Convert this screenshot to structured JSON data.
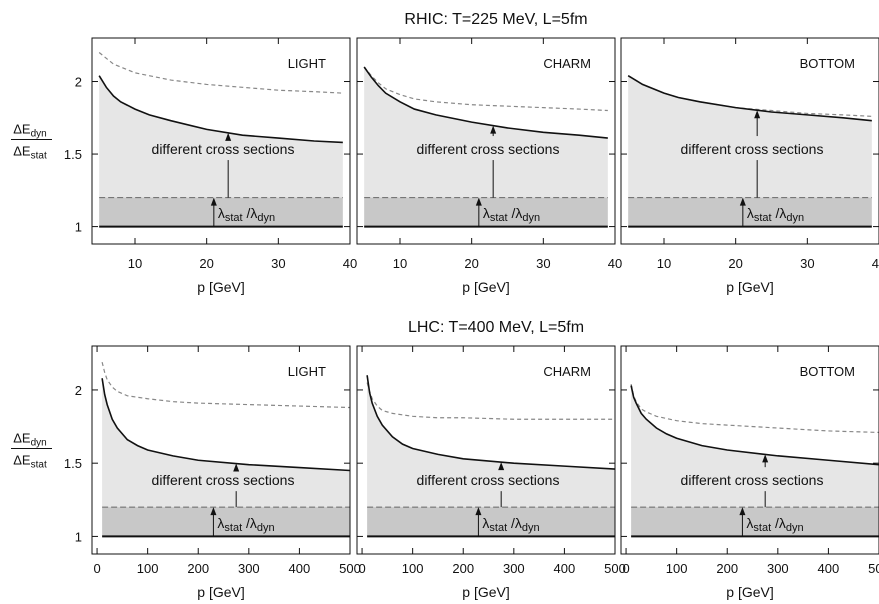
{
  "chart_data": [
    {
      "title": "RHIC: T=225 MeV, L=5fm",
      "xlabel": "p [GeV]",
      "ylabel_num": "ΔE",
      "ylabel_num_sub": "dyn",
      "ylabel_den": "ΔE",
      "ylabel_den_sub": "stat",
      "xlim": [
        4,
        40
      ],
      "ylim": [
        0.88,
        2.3
      ],
      "xticks": [
        10,
        20,
        30,
        40
      ],
      "yticks": [
        1,
        1.5,
        2
      ],
      "yticklabels": [
        "1",
        "1.5",
        "2"
      ],
      "band_level": 1.2,
      "panels": [
        {
          "type": "line",
          "label": "LIGHT",
          "annotation_text": "different cross sections",
          "lambda_text": "λstat /λdyn",
          "solid_x": [
            5,
            6,
            7,
            8,
            10,
            12,
            15,
            20,
            25,
            30,
            35,
            39
          ],
          "solid_y": [
            2.04,
            1.96,
            1.9,
            1.86,
            1.81,
            1.77,
            1.73,
            1.67,
            1.63,
            1.61,
            1.59,
            1.58
          ],
          "dashed_x": [
            5,
            7,
            10,
            15,
            20,
            25,
            30,
            35,
            39
          ],
          "dashed_y": [
            2.2,
            2.12,
            2.06,
            2.01,
            1.98,
            1.96,
            1.94,
            1.93,
            1.92
          ],
          "arrow_x": 23,
          "lambda_arrow_x": 21
        },
        {
          "type": "line",
          "label": "CHARM",
          "annotation_text": "different cross sections",
          "lambda_text": "λstat /λdyn",
          "solid_x": [
            5,
            6,
            7,
            8,
            10,
            12,
            15,
            20,
            25,
            30,
            35,
            39
          ],
          "solid_y": [
            2.1,
            2.03,
            1.97,
            1.92,
            1.86,
            1.81,
            1.77,
            1.72,
            1.68,
            1.65,
            1.63,
            1.61
          ],
          "dashed_x": [
            5,
            6,
            7,
            8,
            10,
            12,
            15,
            20,
            25,
            30,
            35,
            39
          ],
          "dashed_y": [
            2.1,
            2.04,
            1.99,
            1.95,
            1.91,
            1.88,
            1.86,
            1.84,
            1.83,
            1.82,
            1.81,
            1.8
          ],
          "arrow_x": 23,
          "lambda_arrow_x": 21
        },
        {
          "type": "line",
          "label": "BOTTOM",
          "annotation_text": "different cross sections",
          "lambda_text": "λstat /λdyn",
          "solid_x": [
            5,
            7,
            10,
            12,
            15,
            20,
            25,
            30,
            35,
            39
          ],
          "solid_y": [
            2.04,
            1.98,
            1.92,
            1.89,
            1.86,
            1.82,
            1.79,
            1.77,
            1.75,
            1.73
          ],
          "dashed_x": [
            5,
            7,
            10,
            12,
            15,
            20,
            25,
            30,
            35,
            39
          ],
          "dashed_y": [
            2.04,
            1.98,
            1.92,
            1.89,
            1.86,
            1.82,
            1.8,
            1.78,
            1.77,
            1.76
          ],
          "arrow_x": 23,
          "lambda_arrow_x": 21
        }
      ]
    },
    {
      "title": "LHC: T=400 MeV, L=5fm",
      "xlabel": "p [GeV]",
      "ylabel_num": "ΔE",
      "ylabel_num_sub": "dyn",
      "ylabel_den": "ΔE",
      "ylabel_den_sub": "stat",
      "xlim": [
        -10,
        500
      ],
      "ylim": [
        0.88,
        2.3
      ],
      "xticks": [
        0,
        100,
        200,
        300,
        400,
        500
      ],
      "yticks": [
        1,
        1.5,
        2
      ],
      "yticklabels": [
        "1",
        "1.5",
        "2"
      ],
      "band_level": 1.2,
      "panels": [
        {
          "type": "line",
          "label": "LIGHT",
          "annotation_text": "different cross sections",
          "lambda_text": "λstat /λdyn",
          "solid_x": [
            10,
            15,
            20,
            30,
            40,
            60,
            80,
            100,
            150,
            200,
            300,
            400,
            500
          ],
          "solid_y": [
            2.08,
            1.97,
            1.9,
            1.8,
            1.74,
            1.66,
            1.62,
            1.59,
            1.55,
            1.52,
            1.49,
            1.47,
            1.45
          ],
          "dashed_x": [
            10,
            15,
            20,
            30,
            40,
            60,
            100,
            150,
            200,
            300,
            400,
            500
          ],
          "dashed_y": [
            2.19,
            2.12,
            2.07,
            2.02,
            1.99,
            1.96,
            1.94,
            1.92,
            1.91,
            1.9,
            1.89,
            1.88
          ],
          "arrow_x": 275,
          "lambda_arrow_x": 230
        },
        {
          "type": "line",
          "label": "CHARM",
          "annotation_text": "different cross sections",
          "lambda_text": "λstat /λdyn",
          "solid_x": [
            10,
            15,
            20,
            30,
            40,
            60,
            80,
            100,
            150,
            200,
            300,
            400,
            500
          ],
          "solid_y": [
            2.1,
            1.98,
            1.91,
            1.82,
            1.76,
            1.68,
            1.63,
            1.6,
            1.56,
            1.53,
            1.5,
            1.48,
            1.46
          ],
          "dashed_x": [
            10,
            15,
            20,
            30,
            40,
            60,
            100,
            150,
            200,
            300,
            400,
            500
          ],
          "dashed_y": [
            2.05,
            1.99,
            1.94,
            1.89,
            1.86,
            1.84,
            1.82,
            1.81,
            1.81,
            1.8,
            1.8,
            1.8
          ],
          "arrow_x": 275,
          "lambda_arrow_x": 230
        },
        {
          "type": "line",
          "label": "BOTTOM",
          "annotation_text": "different cross sections",
          "lambda_text": "λstat /λdyn",
          "solid_x": [
            10,
            15,
            20,
            30,
            40,
            60,
            80,
            100,
            150,
            200,
            300,
            400,
            500
          ],
          "solid_y": [
            2.03,
            1.95,
            1.91,
            1.84,
            1.8,
            1.74,
            1.7,
            1.67,
            1.62,
            1.59,
            1.55,
            1.52,
            1.49
          ],
          "dashed_x": [
            10,
            15,
            20,
            30,
            40,
            60,
            100,
            150,
            200,
            300,
            400,
            500
          ],
          "dashed_y": [
            2.04,
            1.96,
            1.92,
            1.87,
            1.85,
            1.82,
            1.79,
            1.77,
            1.76,
            1.74,
            1.72,
            1.71
          ],
          "arrow_x": 275,
          "lambda_arrow_x": 230
        }
      ]
    }
  ]
}
